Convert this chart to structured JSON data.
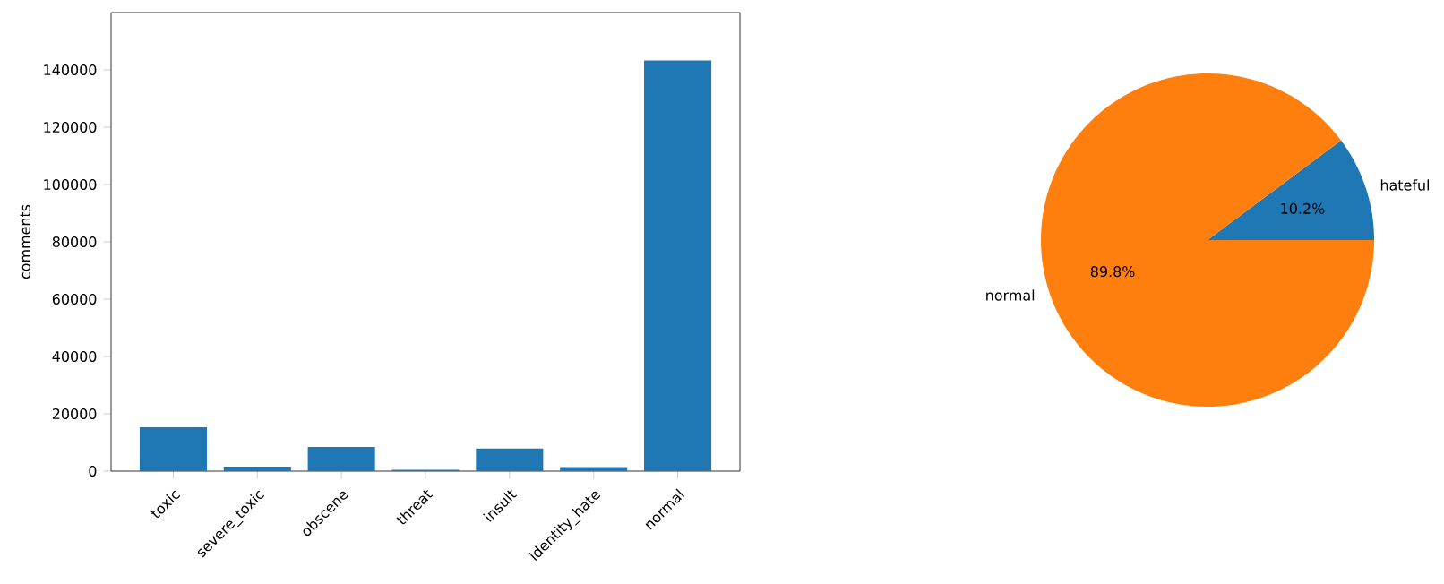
{
  "chart_data": [
    {
      "type": "bar",
      "categories": [
        "toxic",
        "severe_toxic",
        "obscene",
        "threat",
        "insult",
        "identity_hate",
        "normal"
      ],
      "values": [
        15300,
        1600,
        8400,
        500,
        7900,
        1400,
        143300
      ],
      "color": "#1f77b4",
      "ylabel": "comments",
      "ylim": [
        0,
        160000
      ],
      "yticks": [
        0,
        20000,
        40000,
        60000,
        80000,
        100000,
        120000,
        140000
      ]
    },
    {
      "type": "pie",
      "categories": [
        "hateful",
        "normal"
      ],
      "values": [
        10.2,
        89.8
      ],
      "colors": [
        "#1f77b4",
        "#ff7f0e"
      ],
      "value_labels": [
        "10.2%",
        "89.8%"
      ]
    }
  ]
}
